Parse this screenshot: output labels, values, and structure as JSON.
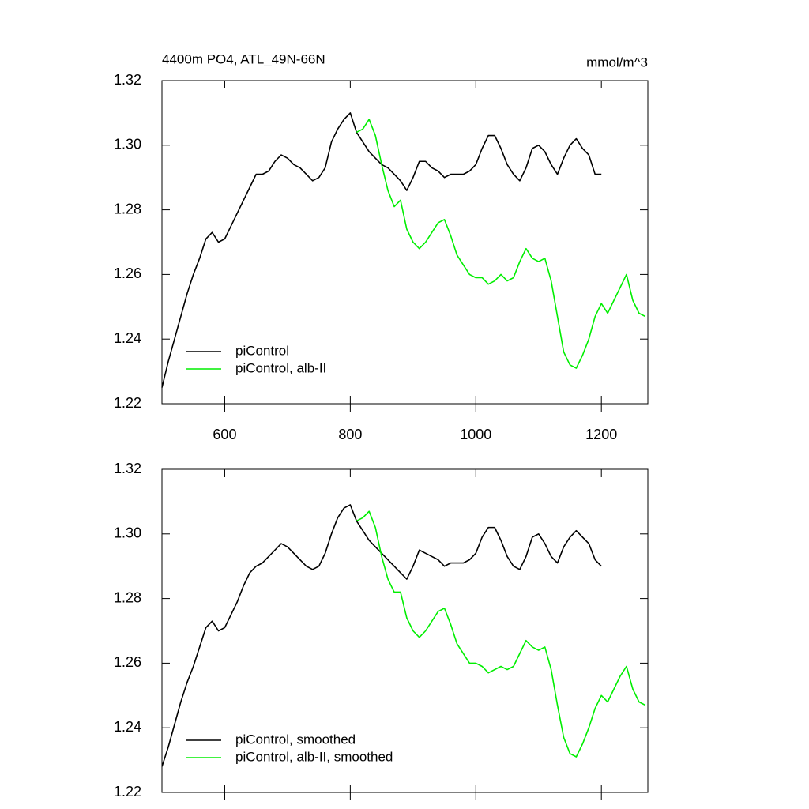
{
  "chart_data": [
    {
      "type": "line",
      "title": "4400m PO4, ATL_49N-66N",
      "units": "mmol/m^3",
      "x": [
        500,
        510,
        520,
        530,
        540,
        550,
        560,
        570,
        580,
        590,
        600,
        610,
        620,
        630,
        640,
        650,
        660,
        670,
        680,
        690,
        700,
        710,
        720,
        730,
        740,
        750,
        760,
        770,
        780,
        790,
        800,
        810,
        820,
        830,
        840,
        850,
        860,
        870,
        880,
        890,
        900,
        910,
        920,
        930,
        940,
        950,
        960,
        970,
        980,
        990,
        1000,
        1010,
        1020,
        1030,
        1040,
        1050,
        1060,
        1070,
        1080,
        1090,
        1100,
        1110,
        1120,
        1130,
        1140,
        1150,
        1160,
        1170,
        1180,
        1190,
        1200,
        1210,
        1220,
        1230,
        1240,
        1250,
        1260,
        1270
      ],
      "series": [
        {
          "name": "piControl",
          "color": "#000000",
          "values": [
            1.225,
            1.233,
            1.24,
            1.247,
            1.254,
            1.26,
            1.265,
            1.271,
            1.273,
            1.27,
            1.271,
            1.275,
            1.279,
            1.283,
            1.287,
            1.291,
            1.291,
            1.292,
            1.295,
            1.297,
            1.296,
            1.294,
            1.293,
            1.291,
            1.289,
            1.29,
            1.293,
            1.301,
            1.305,
            1.308,
            1.31,
            1.304,
            1.301,
            1.298,
            1.296,
            1.294,
            1.293,
            1.291,
            1.289,
            1.286,
            1.29,
            1.295,
            1.295,
            1.293,
            1.292,
            1.29,
            1.291,
            1.291,
            1.291,
            1.292,
            1.294,
            1.299,
            1.303,
            1.303,
            1.299,
            1.294,
            1.291,
            1.289,
            1.293,
            1.299,
            1.3,
            1.298,
            1.294,
            1.291,
            1.296,
            1.3,
            1.302,
            1.299,
            1.297,
            1.291,
            1.291,
            null,
            null,
            null,
            null,
            null,
            null,
            null
          ]
        },
        {
          "name": "piControl, alb-II",
          "color": "#00ee00",
          "values": [
            null,
            null,
            null,
            null,
            null,
            null,
            null,
            null,
            null,
            null,
            null,
            null,
            null,
            null,
            null,
            null,
            null,
            null,
            null,
            null,
            null,
            null,
            null,
            null,
            null,
            null,
            null,
            null,
            null,
            null,
            null,
            1.304,
            1.305,
            1.308,
            1.303,
            1.294,
            1.286,
            1.281,
            1.283,
            1.274,
            1.27,
            1.268,
            1.27,
            1.273,
            1.276,
            1.277,
            1.272,
            1.266,
            1.263,
            1.26,
            1.259,
            1.259,
            1.257,
            1.258,
            1.26,
            1.258,
            1.259,
            1.264,
            1.268,
            1.265,
            1.264,
            1.265,
            1.258,
            1.247,
            1.236,
            1.232,
            1.231,
            1.235,
            1.24,
            1.247,
            1.251,
            1.248,
            1.252,
            1.256,
            1.26,
            1.252,
            1.248,
            1.247
          ]
        }
      ],
      "xlim": [
        500,
        1274
      ],
      "xticks": [
        600,
        800,
        1000,
        1200
      ],
      "xticklabels": true,
      "ylim": [
        1.22,
        1.32
      ],
      "yticks": [
        1.22,
        1.24,
        1.26,
        1.28,
        {
          "value": 1.3,
          "label": "1.30"
        },
        1.32
      ],
      "legend": "lower left"
    },
    {
      "type": "line",
      "x": [
        500,
        510,
        520,
        530,
        540,
        550,
        560,
        570,
        580,
        590,
        600,
        610,
        620,
        630,
        640,
        650,
        660,
        670,
        680,
        690,
        700,
        710,
        720,
        730,
        740,
        750,
        760,
        770,
        780,
        790,
        800,
        810,
        820,
        830,
        840,
        850,
        860,
        870,
        880,
        890,
        900,
        910,
        920,
        930,
        940,
        950,
        960,
        970,
        980,
        990,
        1000,
        1010,
        1020,
        1030,
        1040,
        1050,
        1060,
        1070,
        1080,
        1090,
        1100,
        1110,
        1120,
        1130,
        1140,
        1150,
        1160,
        1170,
        1180,
        1190,
        1200,
        1210,
        1220,
        1230,
        1240,
        1250,
        1260,
        1270
      ],
      "series": [
        {
          "name": "piControl, smoothed",
          "color": "#000000",
          "values": [
            1.228,
            1.234,
            1.241,
            1.248,
            1.254,
            1.259,
            1.265,
            1.271,
            1.273,
            1.27,
            1.271,
            1.275,
            1.279,
            1.284,
            1.288,
            1.29,
            1.291,
            1.293,
            1.295,
            1.297,
            1.296,
            1.294,
            1.292,
            1.29,
            1.289,
            1.29,
            1.294,
            1.3,
            1.305,
            1.308,
            1.309,
            1.304,
            1.301,
            1.298,
            1.296,
            1.294,
            1.292,
            1.29,
            1.288,
            1.286,
            1.29,
            1.295,
            1.294,
            1.293,
            1.292,
            1.29,
            1.291,
            1.291,
            1.291,
            1.292,
            1.294,
            1.299,
            1.302,
            1.302,
            1.298,
            1.293,
            1.29,
            1.289,
            1.293,
            1.299,
            1.3,
            1.297,
            1.293,
            1.291,
            1.296,
            1.299,
            1.301,
            1.299,
            1.297,
            1.292,
            1.29,
            null,
            null,
            null,
            null,
            null,
            null,
            null
          ]
        },
        {
          "name": "piControl, alb-II, smoothed",
          "color": "#00ee00",
          "values": [
            null,
            null,
            null,
            null,
            null,
            null,
            null,
            null,
            null,
            null,
            null,
            null,
            null,
            null,
            null,
            null,
            null,
            null,
            null,
            null,
            null,
            null,
            null,
            null,
            null,
            null,
            null,
            null,
            null,
            null,
            null,
            1.304,
            1.305,
            1.307,
            1.302,
            1.293,
            1.286,
            1.282,
            1.282,
            1.274,
            1.27,
            1.268,
            1.27,
            1.273,
            1.276,
            1.277,
            1.272,
            1.266,
            1.263,
            1.26,
            1.26,
            1.259,
            1.257,
            1.258,
            1.259,
            1.258,
            1.259,
            1.263,
            1.267,
            1.265,
            1.264,
            1.265,
            1.258,
            1.247,
            1.237,
            1.232,
            1.231,
            1.235,
            1.24,
            1.246,
            1.25,
            1.248,
            1.252,
            1.256,
            1.259,
            1.252,
            1.248,
            1.247
          ]
        }
      ],
      "xlim": [
        500,
        1274
      ],
      "xticks": [
        600,
        800,
        1000,
        1200
      ],
      "xticklabels": false,
      "ylim": [
        1.22,
        1.32
      ],
      "yticks": [
        1.22,
        1.24,
        1.26,
        1.28,
        {
          "value": 1.3,
          "label": "1.30"
        },
        1.32
      ],
      "legend": "lower left"
    }
  ]
}
